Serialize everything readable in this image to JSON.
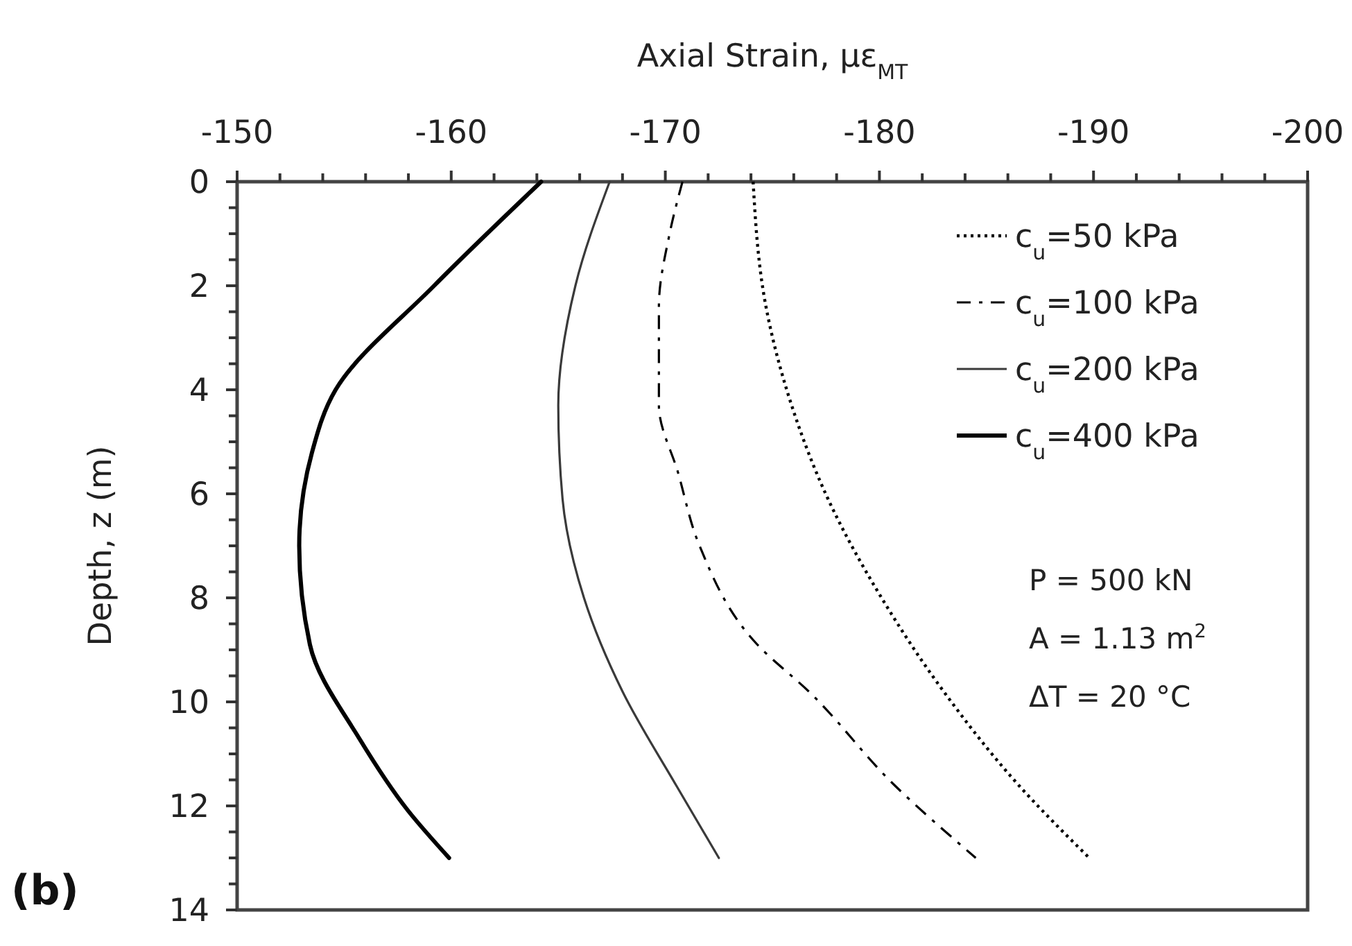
{
  "chart_data": {
    "type": "line",
    "xlabel": "Axial Strain, με$_{MT}$",
    "ylabel": "Depth, z (m)",
    "xlim": [
      -150,
      -200
    ],
    "ylim": [
      14,
      0
    ],
    "xticks": [
      -150,
      {
        "value": -152,
        "label": null
      },
      {
        "value": -154,
        "label": null
      },
      {
        "value": -156,
        "label": null
      },
      {
        "value": -158,
        "label": null
      },
      -160,
      {
        "value": -162,
        "label": null
      },
      {
        "value": -164,
        "label": null
      },
      {
        "value": -166,
        "label": null
      },
      {
        "value": -168,
        "label": null
      },
      -170,
      {
        "value": -172,
        "label": null
      },
      {
        "value": -174,
        "label": null
      },
      {
        "value": -176,
        "label": null
      },
      {
        "value": -178,
        "label": null
      },
      -180,
      {
        "value": -182,
        "label": null
      },
      {
        "value": -184,
        "label": null
      },
      {
        "value": -186,
        "label": null
      },
      {
        "value": -188,
        "label": null
      },
      -190,
      {
        "value": -192,
        "label": null
      },
      {
        "value": -194,
        "label": null
      },
      {
        "value": -196,
        "label": null
      },
      {
        "value": -198,
        "label": null
      },
      -200
    ],
    "yticks": [
      0,
      {
        "value": 0.5,
        "label": null
      },
      {
        "value": 1,
        "label": null
      },
      {
        "value": 1.5,
        "label": null
      },
      2,
      {
        "value": 2.5,
        "label": null
      },
      {
        "value": 3,
        "label": null
      },
      {
        "value": 3.5,
        "label": null
      },
      4,
      {
        "value": 4.5,
        "label": null
      },
      {
        "value": 5,
        "label": null
      },
      {
        "value": 5.5,
        "label": null
      },
      6,
      {
        "value": 6.5,
        "label": null
      },
      {
        "value": 7,
        "label": null
      },
      {
        "value": 7.5,
        "label": null
      },
      8,
      {
        "value": 8.5,
        "label": null
      },
      {
        "value": 9,
        "label": null
      },
      {
        "value": 9.5,
        "label": null
      },
      10,
      {
        "value": 10.5,
        "label": null
      },
      {
        "value": 11,
        "label": null
      },
      {
        "value": 11.5,
        "label": null
      },
      12,
      {
        "value": 12.5,
        "label": null
      },
      {
        "value": 13,
        "label": null
      },
      {
        "value": 13.5,
        "label": null
      },
      14
    ],
    "grid": false,
    "legend": "top right",
    "marker": "none",
    "series": [
      {
        "name": "c$_{u}$=50 kPa",
        "color": "#000000",
        "line_style": "dotted",
        "x": [
          -174.1,
          -174.7,
          -175.9,
          -177.6,
          -180.1,
          -183.0,
          -186.5,
          -189.8
        ],
        "values": [
          0,
          2.4,
          4.3,
          6.1,
          8.0,
          9.8,
          11.6,
          13
        ]
      },
      {
        "name": "c$_{u}$=100 kPa",
        "color": "#000000",
        "line_style": "dashed",
        "x": [
          -170.8,
          -170.2,
          -169.7,
          -169.7,
          -170.6,
          -171.6,
          -174.3,
          -176.7,
          -180.7,
          -184.5
        ],
        "values": [
          0,
          1.0,
          2.4,
          4.3,
          5.6,
          7.0,
          8.9,
          9.8,
          11.6,
          13
        ]
      },
      {
        "name": "c$_{u}$=200 kPa",
        "color": "#3a3a3a",
        "line_style": "solid",
        "x": [
          -167.4,
          -165.8,
          -165.0,
          -165.2,
          -166.2,
          -168.0,
          -170.5,
          -172.5
        ],
        "values": [
          0,
          2.0,
          4.3,
          6.1,
          8.0,
          9.8,
          11.6,
          13
        ]
      },
      {
        "name": "c$_{u}$=400 kPa",
        "color": "#000000",
        "line_style": "solid",
        "x": [
          -164.2,
          -159.2,
          -154.6,
          -153.5,
          -152.9,
          -153.4,
          -155.7,
          -158.0,
          -159.9
        ],
        "values": [
          0,
          2.0,
          4.0,
          5.2,
          7.0,
          8.9,
          10.7,
          12.1,
          13
        ]
      }
    ],
    "annotations": [
      "P = 500 kN",
      "A = 1.13 m$^{2}$",
      "ΔT = 20 °C",
      "(b)"
    ]
  }
}
